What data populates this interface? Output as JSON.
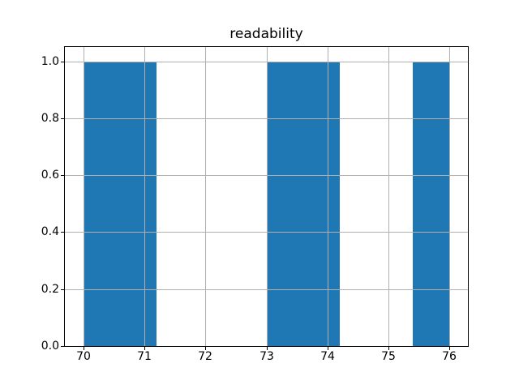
{
  "chart_data": {
    "type": "bar",
    "subtype": "histogram",
    "title": "readability",
    "xlabel": "",
    "ylabel": "",
    "bin_edges": [
      70,
      70.6,
      71.2,
      71.8,
      72.4,
      73,
      73.6,
      74.2,
      74.8,
      75.4,
      76
    ],
    "counts": [
      1,
      1,
      0,
      0,
      0,
      1,
      1,
      0,
      0,
      1
    ],
    "merged_bars": [
      {
        "x_start": 70,
        "x_end": 71.2,
        "height": 1.0
      },
      {
        "x_start": 73,
        "x_end": 74.2,
        "height": 1.0
      },
      {
        "x_start": 75.4,
        "x_end": 76,
        "height": 1.0
      }
    ],
    "xticks": [
      70,
      71,
      72,
      73,
      74,
      75,
      76
    ],
    "yticks": [
      0.0,
      0.2,
      0.4,
      0.6,
      0.8,
      1.0
    ],
    "xlim": [
      69.7,
      76.3
    ],
    "ylim": [
      0,
      1.05
    ],
    "grid": true,
    "grid_above_bars": true,
    "legend": null,
    "colors": {
      "bar": "#1f77b4",
      "grid": "#b0b0b0",
      "spine": "#000000",
      "text": "#000000",
      "background": "#ffffff"
    }
  }
}
